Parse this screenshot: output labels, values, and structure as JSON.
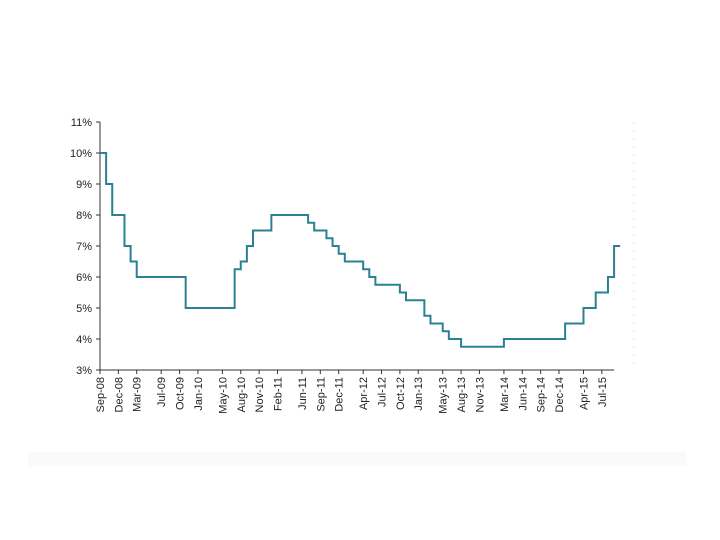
{
  "chart_data": {
    "type": "line",
    "line_style": "step",
    "title": "",
    "xlabel": "",
    "ylabel": "",
    "ylim": [
      3,
      11
    ],
    "y_ticks": [
      3,
      4,
      5,
      6,
      7,
      8,
      9,
      10,
      11
    ],
    "y_tick_labels": [
      "3%",
      "4%",
      "5%",
      "6%",
      "7%",
      "8%",
      "9%",
      "10%",
      "11%"
    ],
    "x_range": [
      "2008-09",
      "2015-09"
    ],
    "x_ticks": [
      {
        "date": "2008-09",
        "label": "Sep-08"
      },
      {
        "date": "2008-12",
        "label": "Dec-08"
      },
      {
        "date": "2009-03",
        "label": "Mar-09"
      },
      {
        "date": "2009-07",
        "label": "Jul-09"
      },
      {
        "date": "2009-10",
        "label": "Oct-09"
      },
      {
        "date": "2010-01",
        "label": "Jan-10"
      },
      {
        "date": "2010-05",
        "label": "May-10"
      },
      {
        "date": "2010-08",
        "label": "Aug-10"
      },
      {
        "date": "2010-11",
        "label": "Nov-10"
      },
      {
        "date": "2011-02",
        "label": "Feb-11"
      },
      {
        "date": "2011-06",
        "label": "Jun-11"
      },
      {
        "date": "2011-09",
        "label": "Sep-11"
      },
      {
        "date": "2011-12",
        "label": "Dec-11"
      },
      {
        "date": "2012-04",
        "label": "Apr-12"
      },
      {
        "date": "2012-07",
        "label": "Jul-12"
      },
      {
        "date": "2012-10",
        "label": "Oct-12"
      },
      {
        "date": "2013-01",
        "label": "Jan-13"
      },
      {
        "date": "2013-05",
        "label": "May-13"
      },
      {
        "date": "2013-08",
        "label": "Aug-13"
      },
      {
        "date": "2013-11",
        "label": "Nov-13"
      },
      {
        "date": "2014-03",
        "label": "Mar-14"
      },
      {
        "date": "2014-06",
        "label": "Jun-14"
      },
      {
        "date": "2014-09",
        "label": "Sep-14"
      },
      {
        "date": "2014-12",
        "label": "Dec-14"
      },
      {
        "date": "2015-04",
        "label": "Apr-15"
      },
      {
        "date": "2015-07",
        "label": "Jul-15"
      }
    ],
    "series": [
      {
        "color": "#2a8194",
        "points": [
          {
            "date": "2008-09",
            "value": 10
          },
          {
            "date": "2008-10",
            "value": 9
          },
          {
            "date": "2008-11",
            "value": 8
          },
          {
            "date": "2009-01",
            "value": 7
          },
          {
            "date": "2009-02",
            "value": 6.5
          },
          {
            "date": "2009-03",
            "value": 6
          },
          {
            "date": "2009-11",
            "value": 5
          },
          {
            "date": "2010-07",
            "value": 6.25
          },
          {
            "date": "2010-08",
            "value": 6.5
          },
          {
            "date": "2010-09",
            "value": 7
          },
          {
            "date": "2010-10",
            "value": 7.5
          },
          {
            "date": "2011-01",
            "value": 8
          },
          {
            "date": "2011-07",
            "value": 7.75
          },
          {
            "date": "2011-08",
            "value": 7.5
          },
          {
            "date": "2011-10",
            "value": 7.25
          },
          {
            "date": "2011-11",
            "value": 7
          },
          {
            "date": "2011-12",
            "value": 6.75
          },
          {
            "date": "2012-01",
            "value": 6.5
          },
          {
            "date": "2012-04",
            "value": 6.25
          },
          {
            "date": "2012-05",
            "value": 6
          },
          {
            "date": "2012-06",
            "value": 5.75
          },
          {
            "date": "2012-10",
            "value": 5.5
          },
          {
            "date": "2012-11",
            "value": 5.25
          },
          {
            "date": "2013-02",
            "value": 4.75
          },
          {
            "date": "2013-03",
            "value": 4.5
          },
          {
            "date": "2013-05",
            "value": 4.25
          },
          {
            "date": "2013-06",
            "value": 4
          },
          {
            "date": "2013-08",
            "value": 3.75
          },
          {
            "date": "2014-03",
            "value": 4
          },
          {
            "date": "2015-01",
            "value": 4.5
          },
          {
            "date": "2015-04",
            "value": 5
          },
          {
            "date": "2015-06",
            "value": 5.5
          },
          {
            "date": "2015-08",
            "value": 6
          },
          {
            "date": "2015-09",
            "value": 7
          },
          {
            "date": "2015-10",
            "value": 7
          }
        ]
      }
    ],
    "grid": false,
    "legend": "none",
    "axis_color": "#333333"
  }
}
